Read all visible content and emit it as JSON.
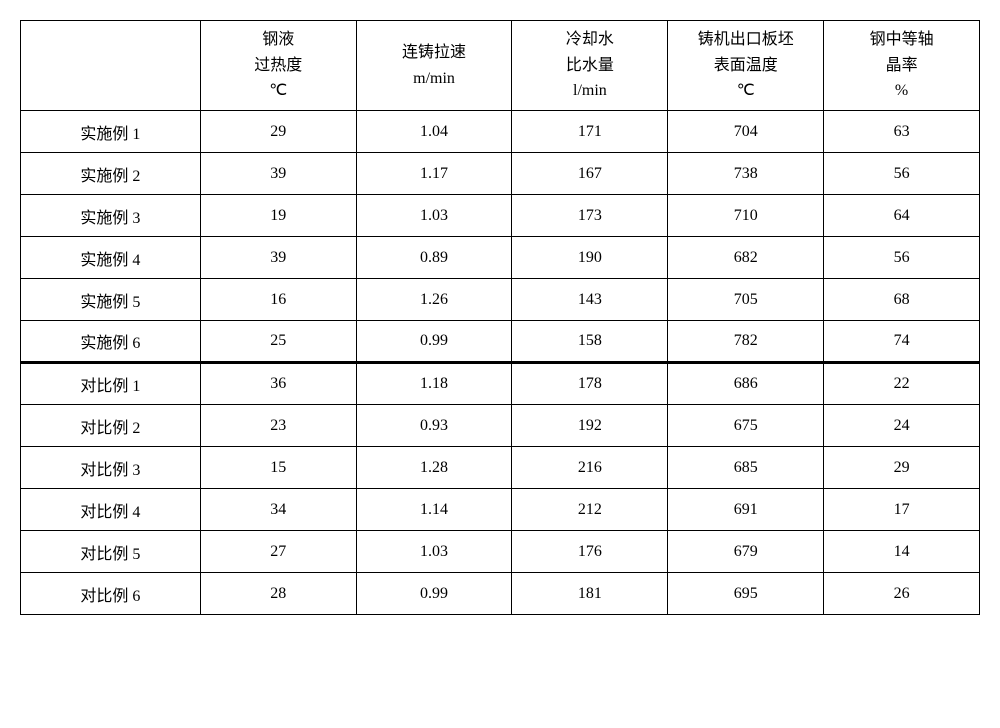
{
  "table": {
    "type": "table",
    "font_size_pt": 18,
    "text_color": "#000000",
    "background_color": "#ffffff",
    "border_color": "#000000",
    "columns": [
      {
        "label": "",
        "width_pct": 18,
        "align": "center"
      },
      {
        "label": "钢液\n过热度\n℃",
        "width_pct": 16.4,
        "align": "center"
      },
      {
        "label": "连铸拉速\nm/min",
        "width_pct": 16.4,
        "align": "center"
      },
      {
        "label": "冷却水\n比水量\nl/min",
        "width_pct": 16.4,
        "align": "center"
      },
      {
        "label": "铸机出口板坯\n表面温度\n℃",
        "width_pct": 16.4,
        "align": "center"
      },
      {
        "label": "钢中等轴\n晶率\n%",
        "width_pct": 16.4,
        "align": "center"
      }
    ],
    "header_lines": {
      "c0": [
        ""
      ],
      "c1": [
        "钢液",
        "过热度",
        "℃"
      ],
      "c2": [
        "连铸拉速",
        "m/min"
      ],
      "c3": [
        "冷却水",
        "比水量",
        "l/min"
      ],
      "c4": [
        "铸机出口板坯",
        "表面温度",
        "℃"
      ],
      "c5": [
        "钢中等轴",
        "晶率",
        "%"
      ]
    },
    "rows": [
      {
        "label": "实施例 1",
        "values": [
          "29",
          "1.04",
          "171",
          "704",
          "63"
        ],
        "group": "a"
      },
      {
        "label": "实施例 2",
        "values": [
          "39",
          "1.17",
          "167",
          "738",
          "56"
        ],
        "group": "a"
      },
      {
        "label": "实施例 3",
        "values": [
          "19",
          "1.03",
          "173",
          "710",
          "64"
        ],
        "group": "a"
      },
      {
        "label": "实施例 4",
        "values": [
          "39",
          "0.89",
          "190",
          "682",
          "56"
        ],
        "group": "a"
      },
      {
        "label": "实施例 5",
        "values": [
          "16",
          "1.26",
          "143",
          "705",
          "68"
        ],
        "group": "a"
      },
      {
        "label": "实施例 6",
        "values": [
          "25",
          "0.99",
          "158",
          "782",
          "74"
        ],
        "group": "a"
      },
      {
        "label": "对比例 1",
        "values": [
          "36",
          "1.18",
          "178",
          "686",
          "22"
        ],
        "group": "b"
      },
      {
        "label": "对比例 2",
        "values": [
          "23",
          "0.93",
          "192",
          "675",
          "24"
        ],
        "group": "b"
      },
      {
        "label": "对比例 3",
        "values": [
          "15",
          "1.28",
          "216",
          "685",
          "29"
        ],
        "group": "b"
      },
      {
        "label": "对比例 4",
        "values": [
          "34",
          "1.14",
          "212",
          "691",
          "17"
        ],
        "group": "b"
      },
      {
        "label": "对比例 5",
        "values": [
          "27",
          "1.03",
          "176",
          "679",
          "14"
        ],
        "group": "b"
      },
      {
        "label": "对比例 6",
        "values": [
          "28",
          "0.99",
          "181",
          "695",
          "26"
        ],
        "group": "b"
      }
    ]
  }
}
